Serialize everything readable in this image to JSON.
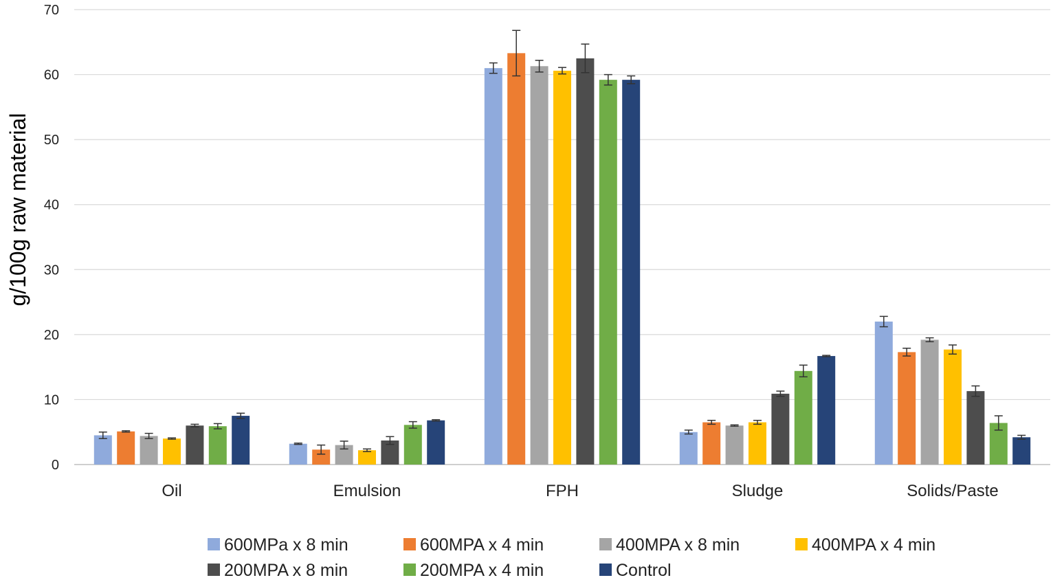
{
  "chart_data": {
    "type": "bar",
    "title": "",
    "xlabel": "",
    "ylabel": "g/100g raw material",
    "ylim": [
      0,
      70
    ],
    "yticks": [
      0,
      10,
      20,
      30,
      40,
      50,
      60,
      70
    ],
    "grid": true,
    "legend_position": "bottom",
    "categories": [
      "Oil",
      "Emulsion",
      "FPH",
      "Sludge",
      "Solids/Paste"
    ],
    "series": [
      {
        "name": "600MPa x 8 min",
        "color": "#8faadc",
        "values": [
          4.5,
          3.2,
          61.0,
          5.0,
          22.0
        ],
        "errors": [
          0.5,
          0.1,
          0.8,
          0.3,
          0.8
        ]
      },
      {
        "name": "600MPA x 4 min",
        "color": "#ed7d31",
        "values": [
          5.1,
          2.3,
          63.3,
          6.5,
          17.3
        ],
        "errors": [
          0.1,
          0.7,
          3.5,
          0.3,
          0.6
        ]
      },
      {
        "name": "400MPA x 8 min",
        "color": "#a5a5a5",
        "values": [
          4.4,
          3.0,
          61.3,
          6.0,
          19.2
        ],
        "errors": [
          0.4,
          0.6,
          0.9,
          0.1,
          0.3
        ]
      },
      {
        "name": "400MPA x 4 min",
        "color": "#ffc000",
        "values": [
          4.0,
          2.2,
          60.6,
          6.5,
          17.7
        ],
        "errors": [
          0.1,
          0.2,
          0.5,
          0.3,
          0.7
        ]
      },
      {
        "name": "200MPA x 8 min",
        "color": "#4d4d4d",
        "values": [
          6.0,
          3.7,
          62.5,
          10.9,
          11.3
        ],
        "errors": [
          0.2,
          0.6,
          2.2,
          0.4,
          0.8
        ]
      },
      {
        "name": "200MPA x 4 min",
        "color": "#70ad47",
        "values": [
          5.9,
          6.1,
          59.2,
          14.4,
          6.4
        ],
        "errors": [
          0.4,
          0.5,
          0.8,
          0.9,
          1.1
        ]
      },
      {
        "name": "Control",
        "color": "#264478",
        "values": [
          7.5,
          6.8,
          59.2,
          16.7,
          4.2
        ],
        "errors": [
          0.4,
          0.1,
          0.6,
          0.1,
          0.3
        ]
      }
    ]
  }
}
